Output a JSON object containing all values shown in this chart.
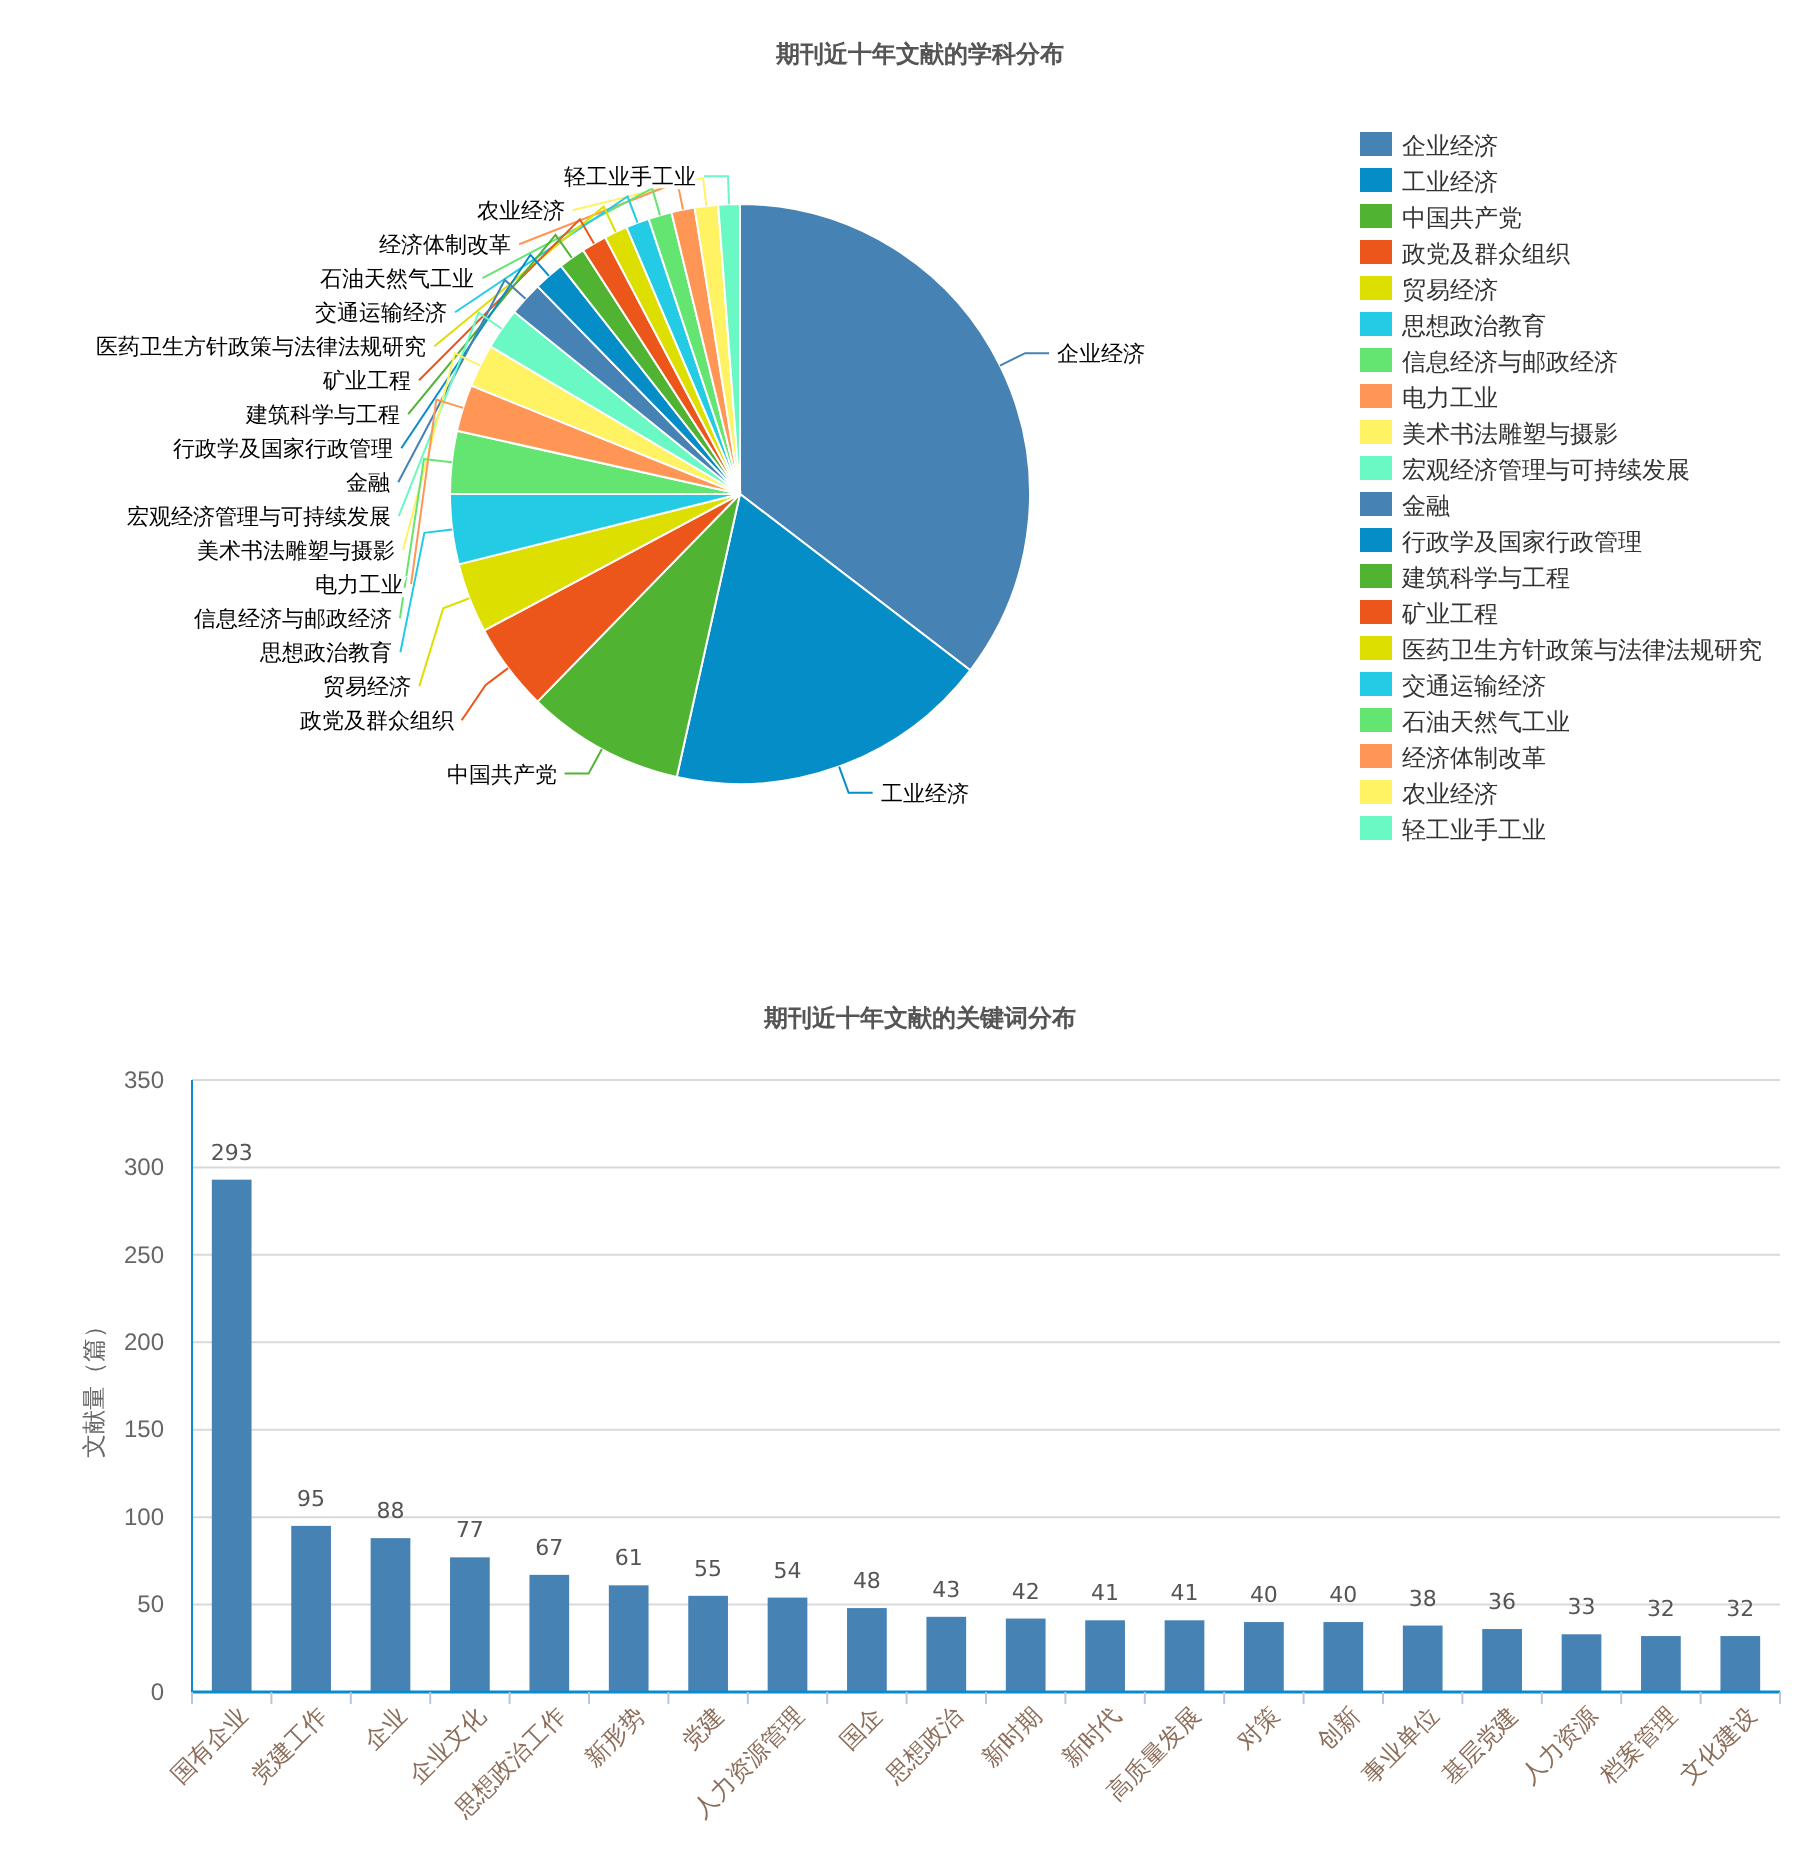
{
  "chart_data": [
    {
      "type": "pie",
      "title": "期刊近十年文献的学科分布",
      "legend": "right",
      "categories": [
        "企业经济",
        "工业经济",
        "中国共产党",
        "政党及群众组织",
        "贸易经济",
        "思想政治教育",
        "信息经济与邮政经济",
        "电力工业",
        "美术书法雕塑与摄影",
        "宏观经济管理与可持续发展",
        "金融",
        "行政学及国家行政管理",
        "建筑科学与工程",
        "矿业工程",
        "医药卫生方针政策与法律法规研究",
        "交通运输经济",
        "石油天然气工业",
        "经济体制改革",
        "农业经济",
        "轻工业手工业"
      ],
      "values": [
        35.4,
        18.1,
        8.8,
        4.9,
        3.9,
        3.9,
        3.5,
        2.6,
        2.4,
        2.3,
        1.9,
        1.7,
        1.5,
        1.4,
        1.3,
        1.3,
        1.3,
        1.3,
        1.3,
        1.2
      ],
      "colors": [
        "#4682b4",
        "#058dc7",
        "#50b432",
        "#ed561b",
        "#dddf00",
        "#24cbe5",
        "#64e572",
        "#ff9655",
        "#fff263",
        "#6af9c4",
        "#4682b4",
        "#058dc7",
        "#50b432",
        "#ed561b",
        "#dddf00",
        "#24cbe5",
        "#64e572",
        "#ff9655",
        "#fff263",
        "#6af9c4"
      ]
    },
    {
      "type": "bar",
      "title": "期刊近十年文献的关键词分布",
      "ylabel": "文献量（篇）",
      "color": "#4682b4",
      "grid": "y",
      "data_labels": true,
      "categories": [
        "国有企业",
        "党建工作",
        "企业",
        "企业文化",
        "思想政治工作",
        "新形势",
        "党建",
        "人力资源管理",
        "国企",
        "思想政治",
        "新时期",
        "新时代",
        "高质量发展",
        "对策",
        "创新",
        "事业单位",
        "基层党建",
        "人力资源",
        "档案管理",
        "文化建设"
      ],
      "values": [
        293,
        95,
        88,
        77,
        67,
        61,
        55,
        54,
        48,
        43,
        42,
        41,
        41,
        40,
        40,
        38,
        36,
        33,
        32,
        32
      ],
      "ylim": [
        0,
        350
      ],
      "yticks": [
        0,
        50,
        100,
        150,
        200,
        250,
        300,
        350
      ]
    }
  ]
}
